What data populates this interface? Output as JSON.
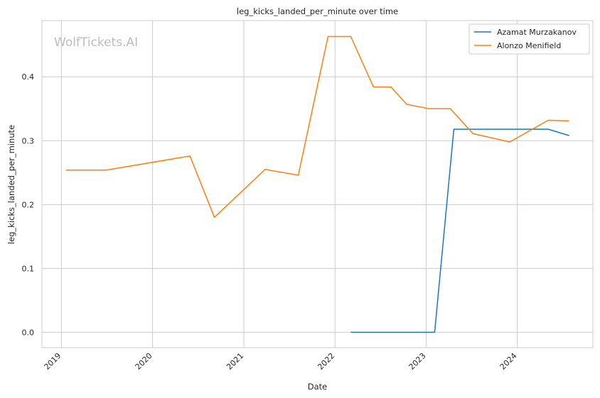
{
  "watermark": "WolfTickets.AI",
  "chart_data": {
    "type": "line",
    "title": "leg_kicks_landed_per_minute over time",
    "xlabel": "Date",
    "ylabel": "leg_kicks_landed_per_minute",
    "x_ticks": [
      "2019",
      "2020",
      "2021",
      "2022",
      "2023",
      "2024"
    ],
    "y_ticks": [
      "0.0",
      "0.1",
      "0.2",
      "0.3",
      "0.4"
    ],
    "ylim": [
      -0.024,
      0.488
    ],
    "xlim": [
      "2018-10-15",
      "2024-10-30"
    ],
    "grid": true,
    "legend_position": "top-right",
    "series": [
      {
        "name": "Azamat Murzakanov",
        "color": "#1f77b4",
        "points": [
          {
            "x": "2022-03-05",
            "y": 0.0
          },
          {
            "x": "2023-02-04",
            "y": 0.0
          },
          {
            "x": "2023-04-22",
            "y": 0.318
          },
          {
            "x": "2024-05-04",
            "y": 0.318
          },
          {
            "x": "2024-07-27",
            "y": 0.308
          }
        ]
      },
      {
        "name": "Alonzo Menifield",
        "color": "#ff7f0e",
        "points": [
          {
            "x": "2019-01-19",
            "y": 0.254
          },
          {
            "x": "2019-06-29",
            "y": 0.254
          },
          {
            "x": "2020-05-30",
            "y": 0.276
          },
          {
            "x": "2020-09-05",
            "y": 0.18
          },
          {
            "x": "2021-03-27",
            "y": 0.255
          },
          {
            "x": "2021-08-07",
            "y": 0.246
          },
          {
            "x": "2021-12-04",
            "y": 0.463
          },
          {
            "x": "2022-03-05",
            "y": 0.463
          },
          {
            "x": "2022-06-04",
            "y": 0.384
          },
          {
            "x": "2022-08-13",
            "y": 0.384
          },
          {
            "x": "2022-10-15",
            "y": 0.357
          },
          {
            "x": "2023-01-14",
            "y": 0.35
          },
          {
            "x": "2023-04-08",
            "y": 0.35
          },
          {
            "x": "2023-07-08",
            "y": 0.311
          },
          {
            "x": "2023-12-02",
            "y": 0.298
          },
          {
            "x": "2024-05-04",
            "y": 0.332
          },
          {
            "x": "2024-07-27",
            "y": 0.331
          }
        ]
      }
    ]
  }
}
